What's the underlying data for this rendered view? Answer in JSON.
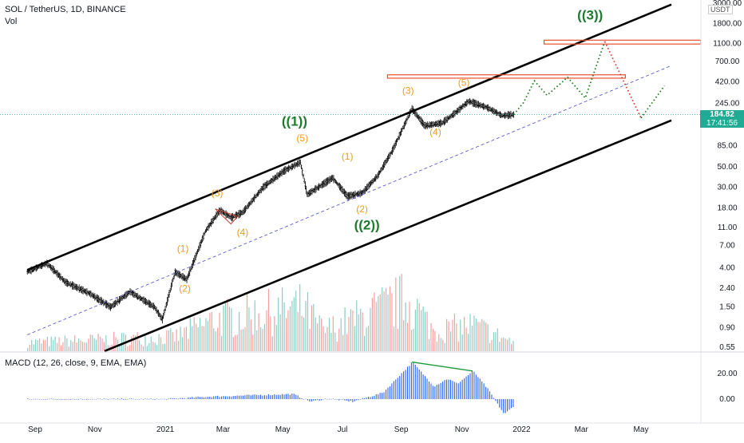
{
  "header": {
    "symbol_line": "SOL / TetherUS, 1D, BINANCE",
    "volume_label": "Vol",
    "macd_label": "MACD (12, 26, close, 9, EMA, EMA)",
    "currency_badge": "USDT"
  },
  "last_price": {
    "value": "184.82",
    "countdown": "17:41:56"
  },
  "colors": {
    "wave_label": "#f29a1a",
    "major_wave_label": "#1f7a2e",
    "channel": "#000000",
    "midline": "#4a4acc",
    "resistance": "#e8502a",
    "projection_up": "#1a7a1a",
    "projection_down": "#e03030",
    "macd": "#2962ff",
    "candle": "#000000",
    "volume_up": "#26a69a",
    "volume_down": "#ef5350",
    "macd_divergence": "#1f9a3a"
  },
  "chart_data": {
    "type": "candlestick",
    "title": "SOL / TetherUS, 1D, BINANCE",
    "y_scale": "log",
    "ylim": [
      0.5,
      3000
    ],
    "y_ticks": [
      "3000.00",
      "1800.00",
      "1100.00",
      "700.00",
      "420.00",
      "245.00",
      "150.00",
      "85.00",
      "50.00",
      "30.00",
      "18.00",
      "11.00",
      "7.00",
      "4.00",
      "2.40",
      "1.50",
      "0.90",
      "0.55"
    ],
    "x_ticks": [
      "Sep",
      "Nov",
      "2021",
      "Mar",
      "May",
      "Jul",
      "Sep",
      "Nov",
      "2022",
      "Mar",
      "May"
    ],
    "price_path": [
      {
        "date": "2020-08-12",
        "price": 3.6
      },
      {
        "date": "2020-09-01",
        "price": 4.5
      },
      {
        "date": "2020-09-20",
        "price": 2.8
      },
      {
        "date": "2020-10-15",
        "price": 2.1
      },
      {
        "date": "2020-11-05",
        "price": 1.5
      },
      {
        "date": "2020-11-25",
        "price": 2.2
      },
      {
        "date": "2020-12-20",
        "price": 1.5
      },
      {
        "date": "2020-12-28",
        "price": 1.1
      },
      {
        "date": "2021-01-10",
        "price": 3.6
      },
      {
        "date": "2021-01-22",
        "price": 3.0
      },
      {
        "date": "2021-02-10",
        "price": 10.0
      },
      {
        "date": "2021-02-25",
        "price": 17.0
      },
      {
        "date": "2021-03-08",
        "price": 14.0
      },
      {
        "date": "2021-03-20",
        "price": 16.0
      },
      {
        "date": "2021-04-10",
        "price": 30.0
      },
      {
        "date": "2021-05-01",
        "price": 45.0
      },
      {
        "date": "2021-05-18",
        "price": 56.0
      },
      {
        "date": "2021-05-25",
        "price": 25.0
      },
      {
        "date": "2021-06-20",
        "price": 38.0
      },
      {
        "date": "2021-07-05",
        "price": 24.0
      },
      {
        "date": "2021-07-20",
        "price": 26.0
      },
      {
        "date": "2021-08-05",
        "price": 40.0
      },
      {
        "date": "2021-08-20",
        "price": 75.0
      },
      {
        "date": "2021-09-09",
        "price": 214.0
      },
      {
        "date": "2021-09-22",
        "price": 140.0
      },
      {
        "date": "2021-10-10",
        "price": 150.0
      },
      {
        "date": "2021-10-25",
        "price": 200.0
      },
      {
        "date": "2021-11-06",
        "price": 258.0
      },
      {
        "date": "2021-11-25",
        "price": 220.0
      },
      {
        "date": "2021-12-10",
        "price": 180.0
      },
      {
        "date": "2021-12-22",
        "price": 184.82
      }
    ],
    "volume_path": [
      {
        "date": "2020-08-12",
        "level": 0.15
      },
      {
        "date": "2021-01-10",
        "level": 0.25
      },
      {
        "date": "2021-02-20",
        "level": 0.55
      },
      {
        "date": "2021-05-20",
        "level": 0.75
      },
      {
        "date": "2021-06-10",
        "level": 0.35
      },
      {
        "date": "2021-09-05",
        "level": 0.9
      },
      {
        "date": "2021-10-01",
        "level": 0.35
      },
      {
        "date": "2021-11-10",
        "level": 0.45
      },
      {
        "date": "2021-12-22",
        "level": 0.15
      }
    ],
    "macd_y_ticks": [
      "20.00",
      "0.00"
    ],
    "macd_path": [
      {
        "date": "2020-08-12",
        "value": 0.0
      },
      {
        "date": "2020-12-31",
        "value": 0.0
      },
      {
        "date": "2021-02-15",
        "value": 2.0
      },
      {
        "date": "2021-05-10",
        "value": 4.0
      },
      {
        "date": "2021-05-28",
        "value": -2.0
      },
      {
        "date": "2021-06-15",
        "value": 0.5
      },
      {
        "date": "2021-07-10",
        "value": -2.0
      },
      {
        "date": "2021-08-10",
        "value": 5.0
      },
      {
        "date": "2021-09-09",
        "value": 29.0
      },
      {
        "date": "2021-10-01",
        "value": 10.0
      },
      {
        "date": "2021-10-15",
        "value": 16.0
      },
      {
        "date": "2021-10-25",
        "value": 12.0
      },
      {
        "date": "2021-11-10",
        "value": 22.0
      },
      {
        "date": "2021-11-25",
        "value": 8.0
      },
      {
        "date": "2021-12-05",
        "value": -4.0
      },
      {
        "date": "2021-12-12",
        "value": -12.0
      },
      {
        "date": "2021-12-22",
        "value": -5.0
      }
    ],
    "channel_lines": [
      {
        "role": "upper",
        "points": [
          {
            "date": "2020-08-12",
            "price": 3.8
          },
          {
            "date": "2022-06-01",
            "price": 2900.0
          }
        ]
      },
      {
        "role": "mid",
        "points": [
          {
            "date": "2020-08-12",
            "price": 0.75
          },
          {
            "date": "2022-06-01",
            "price": 630.0
          }
        ]
      },
      {
        "role": "lower",
        "points": [
          {
            "date": "2020-10-30",
            "price": 0.5
          },
          {
            "date": "2022-06-01",
            "price": 160.0
          }
        ]
      }
    ],
    "resistance_zones": [
      {
        "from": "2022-01-22",
        "to": "2022-07-01",
        "low": 1080.0,
        "high": 1190.0
      },
      {
        "from": "2021-08-15",
        "to": "2022-04-15",
        "low": 460.0,
        "high": 500.0
      }
    ],
    "projection_up": [
      {
        "date": "2021-12-22",
        "price": 184.82
      },
      {
        "date": "2022-01-01",
        "price": 250.0
      },
      {
        "date": "2022-01-12",
        "price": 430.0
      },
      {
        "date": "2022-01-25",
        "price": 300.0
      },
      {
        "date": "2022-02-15",
        "price": 470.0
      },
      {
        "date": "2022-03-05",
        "price": 280.0
      },
      {
        "date": "2022-03-25",
        "price": 1150.0
      }
    ],
    "projection_down": [
      {
        "date": "2022-03-25",
        "price": 1150.0
      },
      {
        "date": "2022-05-01",
        "price": 170.0
      }
    ],
    "projection_rebound": [
      {
        "date": "2022-05-01",
        "price": 170.0
      },
      {
        "date": "2022-05-25",
        "price": 380.0
      }
    ],
    "macd_divergence": [
      {
        "date": "2021-09-09",
        "value": 29.0
      },
      {
        "date": "2021-11-10",
        "value": 22.0
      }
    ],
    "triangle": [
      {
        "date": "2021-02-20",
        "price": 17.5
      },
      {
        "date": "2021-03-15",
        "price": 14.5
      },
      {
        "date": "2021-03-08",
        "price": 12.0
      }
    ],
    "wave_labels": [
      {
        "text": "(1)",
        "date": "2021-01-18",
        "price": 6.0,
        "style": "minor"
      },
      {
        "text": "(2)",
        "date": "2021-01-20",
        "price": 2.2,
        "style": "minor"
      },
      {
        "text": "(3)",
        "date": "2021-02-22",
        "price": 24.0,
        "style": "minor"
      },
      {
        "text": "(4)",
        "date": "2021-03-20",
        "price": 9.0,
        "style": "minor"
      },
      {
        "text": "(5)",
        "date": "2021-05-20",
        "price": 95.0,
        "style": "minor"
      },
      {
        "text": "(1)",
        "date": "2021-07-05",
        "price": 60.0,
        "style": "minor"
      },
      {
        "text": "(2)",
        "date": "2021-07-20",
        "price": 16.0,
        "style": "minor"
      },
      {
        "text": "(3)",
        "date": "2021-09-05",
        "price": 310.0,
        "style": "minor"
      },
      {
        "text": "(4)",
        "date": "2021-10-03",
        "price": 110.0,
        "style": "minor"
      },
      {
        "text": "(5)",
        "date": "2021-11-01",
        "price": 380.0,
        "style": "minor"
      },
      {
        "text": "((1))",
        "date": "2021-05-12",
        "price": 140.0,
        "style": "major"
      },
      {
        "text": "((2))",
        "date": "2021-07-25",
        "price": 10.5,
        "style": "major"
      },
      {
        "text": "((3))",
        "date": "2022-03-10",
        "price": 2000.0,
        "style": "major"
      }
    ]
  }
}
